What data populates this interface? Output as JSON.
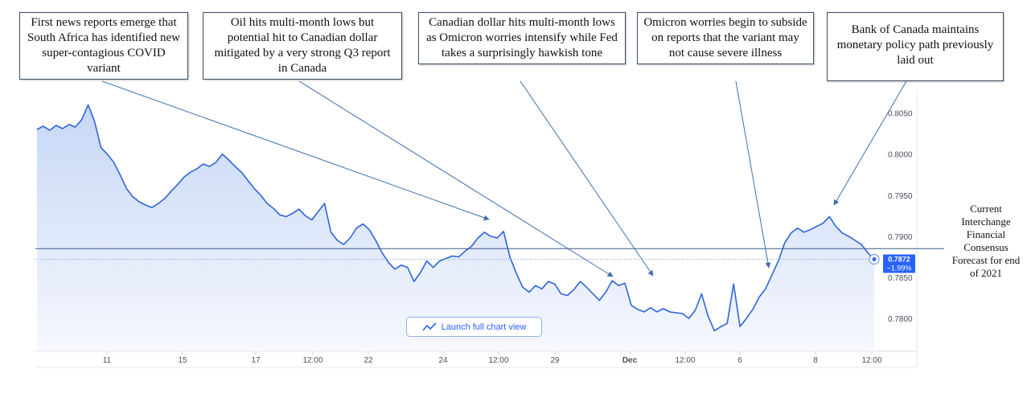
{
  "chart_data": {
    "type": "area",
    "series": [
      {
        "values": [
          0.803,
          0.8034,
          0.8029,
          0.8035,
          0.8031,
          0.8036,
          0.8033,
          0.8042,
          0.806,
          0.804,
          0.8008,
          0.8,
          0.799,
          0.7975,
          0.7958,
          0.7948,
          0.7942,
          0.7938,
          0.7935,
          0.794,
          0.7946,
          0.7955,
          0.7963,
          0.7972,
          0.7978,
          0.7982,
          0.7988,
          0.7985,
          0.799,
          0.8,
          0.7993,
          0.7985,
          0.7978,
          0.7968,
          0.7958,
          0.795,
          0.794,
          0.7934,
          0.7926,
          0.7924,
          0.7928,
          0.7933,
          0.7925,
          0.792,
          0.793,
          0.794,
          0.7905,
          0.7895,
          0.789,
          0.7898,
          0.791,
          0.7915,
          0.7908,
          0.7895,
          0.788,
          0.7868,
          0.786,
          0.7865,
          0.7862,
          0.7845,
          0.7856,
          0.787,
          0.7862,
          0.787,
          0.7873,
          0.7876,
          0.7875,
          0.7882,
          0.7888,
          0.7898,
          0.7905,
          0.79,
          0.7898,
          0.7906,
          0.7875,
          0.7855,
          0.7838,
          0.7832,
          0.784,
          0.7836,
          0.7845,
          0.7842,
          0.783,
          0.7828,
          0.7835,
          0.7845,
          0.7838,
          0.783,
          0.7822,
          0.7832,
          0.7846,
          0.784,
          0.7843,
          0.7816,
          0.7811,
          0.7808,
          0.7813,
          0.7808,
          0.7812,
          0.7808,
          0.7807,
          0.7806,
          0.78,
          0.781,
          0.783,
          0.7803,
          0.7785,
          0.779,
          0.7794,
          0.7842,
          0.779,
          0.78,
          0.7811,
          0.7826,
          0.7836,
          0.7853,
          0.787,
          0.7892,
          0.7904,
          0.791,
          0.7905,
          0.7908,
          0.7912,
          0.7916,
          0.7924,
          0.7912,
          0.7904,
          0.79,
          0.7895,
          0.789,
          0.788,
          0.7872
        ],
        "color": "#2e63d8"
      }
    ],
    "x_ticks": [
      "11",
      "15",
      "17",
      "12:00",
      "22",
      "24",
      "12:00",
      "29",
      "Dec",
      "12:00",
      "6",
      "8",
      "12:00"
    ],
    "y_ticks": [
      "0.8050",
      "0.8000",
      "0.7950",
      "0.7900",
      "0.7850",
      "0.7800"
    ],
    "ylim": [
      0.776,
      0.8077
    ],
    "reference_line": 0.7885,
    "last_value_label": "0.7872",
    "last_change_label": "−1.99%",
    "grid": false
  },
  "annotations": [
    {
      "text": "First news reports emerge that South Africa has identified new super-contagious COVID variant"
    },
    {
      "text": "Oil hits multi-month lows but potential hit to Canadian dollar mitigated by a very strong Q3 report in Canada"
    },
    {
      "text": "Canadian dollar hits multi-month lows as Omicron worries intensify while Fed takes a surprisingly hawkish tone"
    },
    {
      "text": "Omicron worries begin to subside on reports that the variant may not cause severe illness"
    },
    {
      "text": "Bank of Canada maintains monetary policy path previously laid out"
    }
  ],
  "side_note": "Current Interchange Financial Consensus Forecast for end of 2021",
  "launch_button": {
    "label": "Launch full chart view",
    "icon": "chart-line-icon"
  },
  "colors": {
    "line": "#2e63d8",
    "area_top": "#c9d9f7",
    "area_bottom": "#f4f7fd",
    "reference_line": "#3c5a87",
    "badge": "#2962ff"
  }
}
